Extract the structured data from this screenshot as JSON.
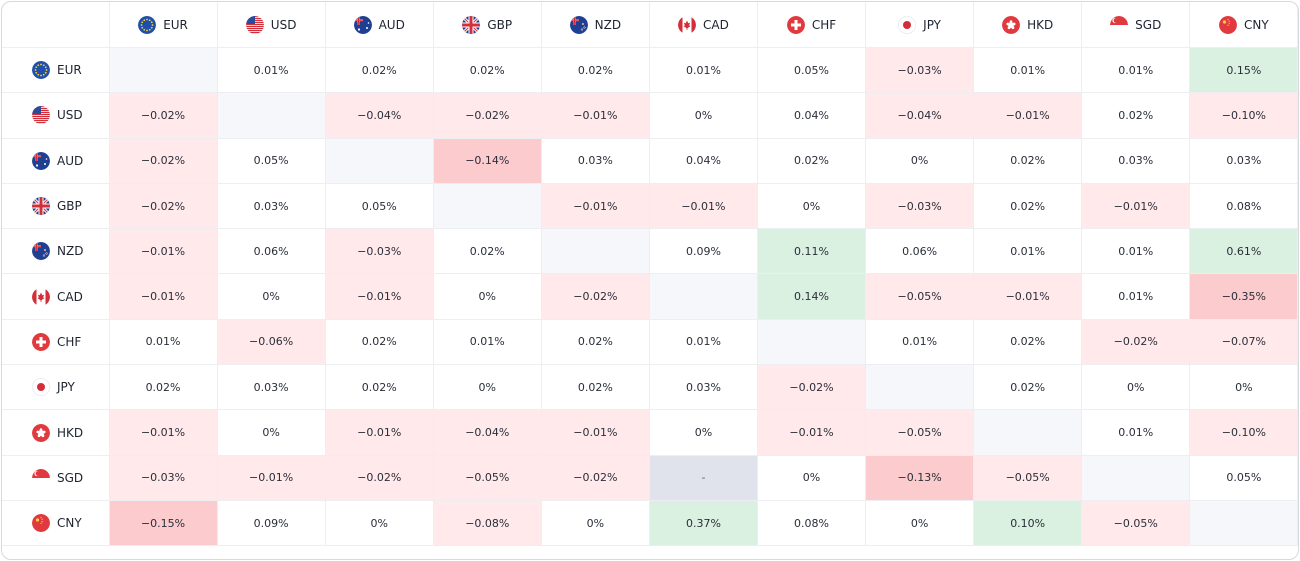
{
  "currencies": [
    "EUR",
    "USD",
    "AUD",
    "GBP",
    "NZD",
    "CAD",
    "CHF",
    "JPY",
    "HKD",
    "SGD",
    "CNY"
  ],
  "flags": {
    "EUR": "eu-flag-icon",
    "USD": "us-flag-icon",
    "AUD": "au-flag-icon",
    "GBP": "gb-flag-icon",
    "NZD": "nz-flag-icon",
    "CAD": "ca-flag-icon",
    "CHF": "ch-flag-icon",
    "JPY": "jp-flag-icon",
    "HKD": "hk-flag-icon",
    "SGD": "sg-flag-icon",
    "CNY": "cn-flag-icon"
  },
  "colors": {
    "negative_light": "#ffe9eb",
    "negative_strong": "#fccbcd",
    "positive_light": "#daf1e1",
    "diagonal": "#f6f7fa",
    "not_available": "#e0e3eb"
  },
  "rows": [
    {
      "label": "EUR",
      "cells": [
        "",
        "0.01%",
        "0.02%",
        "0.02%",
        "0.02%",
        "0.01%",
        "0.05%",
        "−0.03%",
        "0.01%",
        "0.01%",
        "0.15%"
      ]
    },
    {
      "label": "USD",
      "cells": [
        "−0.02%",
        "",
        "−0.04%",
        "−0.02%",
        "−0.01%",
        "0%",
        "0.04%",
        "−0.04%",
        "−0.01%",
        "0.02%",
        "−0.10%"
      ]
    },
    {
      "label": "AUD",
      "cells": [
        "−0.02%",
        "0.05%",
        "",
        "−0.14%",
        "0.03%",
        "0.04%",
        "0.02%",
        "0%",
        "0.02%",
        "0.03%",
        "0.03%"
      ]
    },
    {
      "label": "GBP",
      "cells": [
        "−0.02%",
        "0.03%",
        "0.05%",
        "",
        "−0.01%",
        "−0.01%",
        "0%",
        "−0.03%",
        "0.02%",
        "−0.01%",
        "0.08%"
      ]
    },
    {
      "label": "NZD",
      "cells": [
        "−0.01%",
        "0.06%",
        "−0.03%",
        "0.02%",
        "",
        "0.09%",
        "0.11%",
        "0.06%",
        "0.01%",
        "0.01%",
        "0.61%"
      ]
    },
    {
      "label": "CAD",
      "cells": [
        "−0.01%",
        "0%",
        "−0.01%",
        "0%",
        "−0.02%",
        "",
        "0.14%",
        "−0.05%",
        "−0.01%",
        "0.01%",
        "−0.35%"
      ]
    },
    {
      "label": "CHF",
      "cells": [
        "0.01%",
        "−0.06%",
        "0.02%",
        "0.01%",
        "0.02%",
        "0.01%",
        "",
        "0.01%",
        "0.02%",
        "−0.02%",
        "−0.07%"
      ]
    },
    {
      "label": "JPY",
      "cells": [
        "0.02%",
        "0.03%",
        "0.02%",
        "0%",
        "0.02%",
        "0.03%",
        "−0.02%",
        "",
        "0.02%",
        "0%",
        "0%"
      ]
    },
    {
      "label": "HKD",
      "cells": [
        "−0.01%",
        "0%",
        "−0.01%",
        "−0.04%",
        "−0.01%",
        "0%",
        "−0.01%",
        "−0.05%",
        "",
        "0.01%",
        "−0.10%"
      ]
    },
    {
      "label": "SGD",
      "cells": [
        "−0.03%",
        "−0.01%",
        "−0.02%",
        "−0.05%",
        "−0.02%",
        "-",
        "0%",
        "−0.13%",
        "−0.05%",
        "",
        "0.05%"
      ]
    },
    {
      "label": "CNY",
      "cells": [
        "−0.15%",
        "0.09%",
        "0%",
        "−0.08%",
        "0%",
        "0.37%",
        "0.08%",
        "0%",
        "0.10%",
        "−0.05%",
        ""
      ]
    }
  ],
  "cell_styles": [
    [
      "diag",
      "zero",
      "zero",
      "zero",
      "zero",
      "zero",
      "zero",
      "neg1",
      "zero",
      "zero",
      "pos1"
    ],
    [
      "neg1",
      "diag",
      "neg1",
      "neg1",
      "neg1",
      "zero",
      "zero",
      "neg1",
      "neg1",
      "zero",
      "neg1"
    ],
    [
      "neg1",
      "zero",
      "diag",
      "neg2",
      "zero",
      "zero",
      "zero",
      "zero",
      "zero",
      "zero",
      "zero"
    ],
    [
      "neg1",
      "zero",
      "zero",
      "diag",
      "neg1",
      "neg1",
      "zero",
      "neg1",
      "zero",
      "neg1",
      "zero"
    ],
    [
      "neg1",
      "zero",
      "neg1",
      "zero",
      "diag",
      "zero",
      "pos1",
      "zero",
      "zero",
      "zero",
      "pos1"
    ],
    [
      "neg1",
      "zero",
      "neg1",
      "zero",
      "neg1",
      "diag",
      "pos1",
      "neg1",
      "neg1",
      "zero",
      "neg2"
    ],
    [
      "zero",
      "neg1",
      "zero",
      "zero",
      "zero",
      "zero",
      "diag",
      "zero",
      "zero",
      "neg1",
      "neg1"
    ],
    [
      "zero",
      "zero",
      "zero",
      "zero",
      "zero",
      "zero",
      "neg1",
      "diag",
      "zero",
      "zero",
      "zero"
    ],
    [
      "neg1",
      "zero",
      "neg1",
      "neg1",
      "neg1",
      "zero",
      "neg1",
      "neg1",
      "diag",
      "zero",
      "neg1"
    ],
    [
      "neg1",
      "neg1",
      "neg1",
      "neg1",
      "neg1",
      "na",
      "zero",
      "neg2",
      "neg1",
      "diag",
      "zero"
    ],
    [
      "neg2",
      "zero",
      "zero",
      "neg1",
      "zero",
      "pos1",
      "zero",
      "zero",
      "pos1",
      "neg1",
      "diag"
    ]
  ]
}
